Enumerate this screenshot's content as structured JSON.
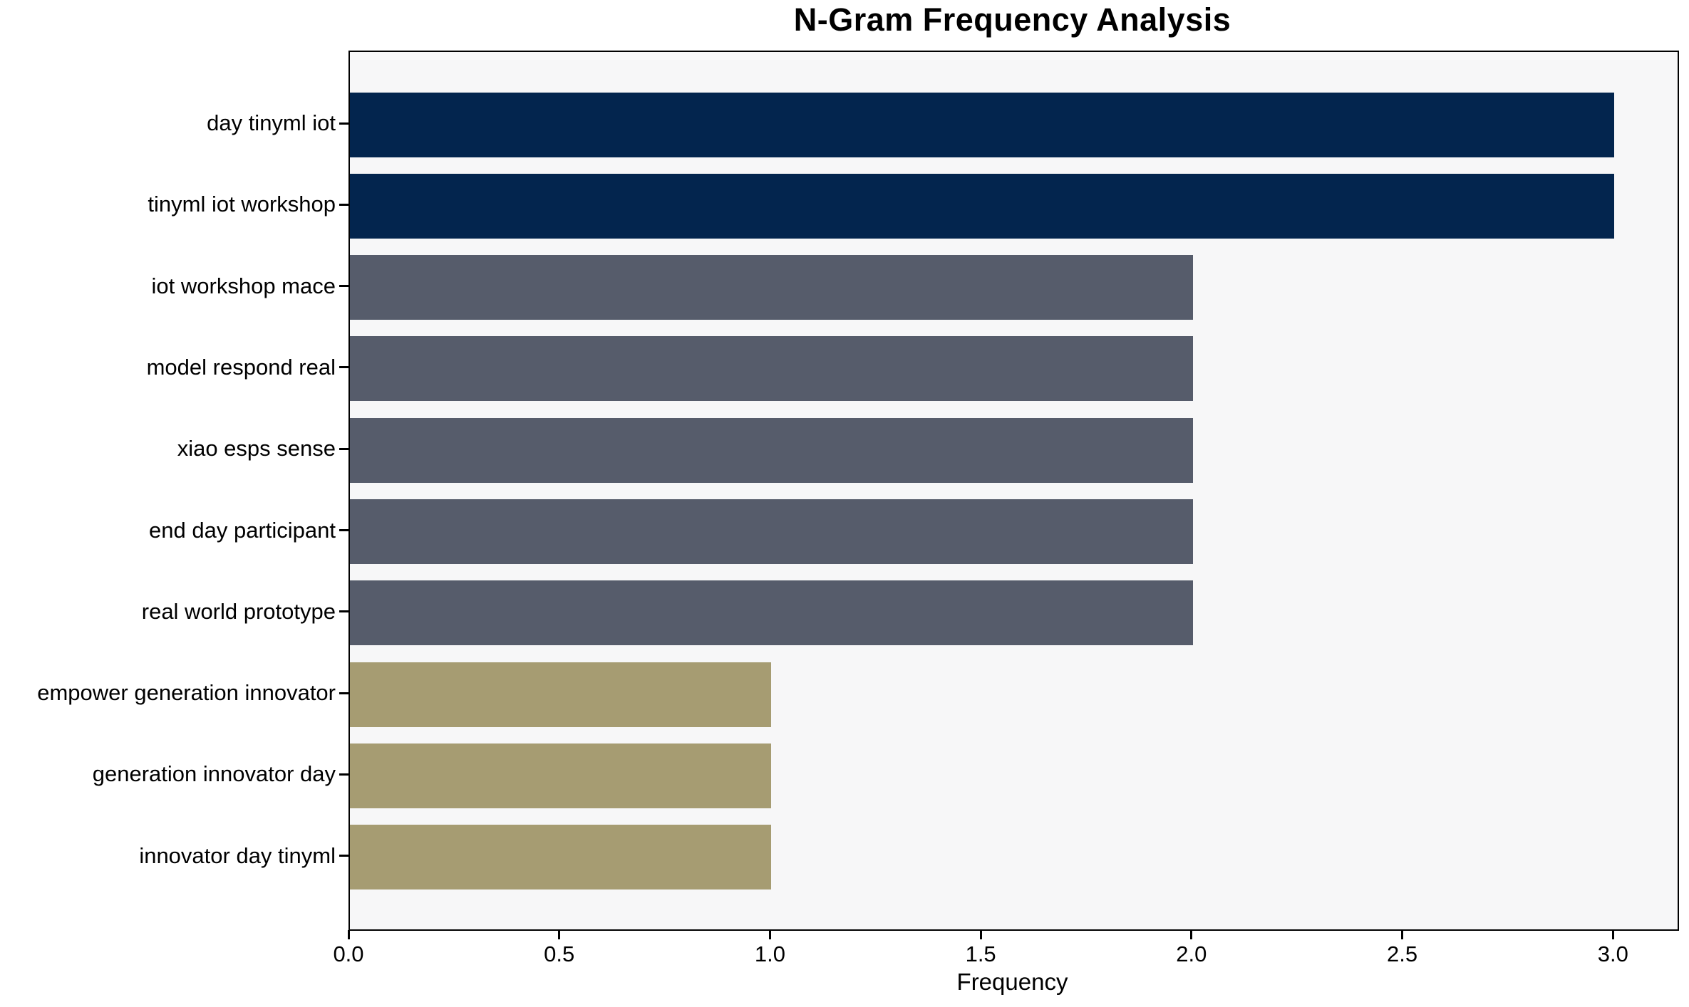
{
  "title": "N-Gram Frequency Analysis",
  "chart_data": {
    "type": "bar",
    "orientation": "horizontal",
    "title": "N-Gram Frequency Analysis",
    "xlabel": "Frequency",
    "ylabel": "",
    "categories": [
      "day tinyml iot",
      "tinyml iot workshop",
      "iot workshop mace",
      "model respond real",
      "xiao esps sense",
      "end day participant",
      "real world prototype",
      "empower generation innovator",
      "generation innovator day",
      "innovator day tinyml"
    ],
    "values": [
      3,
      3,
      2,
      2,
      2,
      2,
      2,
      1,
      1,
      1
    ],
    "bar_colors": [
      "#03254e",
      "#03254e",
      "#565c6b",
      "#565c6b",
      "#565c6b",
      "#565c6b",
      "#565c6b",
      "#a69c72",
      "#a69c72",
      "#a69c72"
    ],
    "xlim": [
      0,
      3.15
    ],
    "x_ticks": [
      "0.0",
      "0.5",
      "1.0",
      "1.5",
      "2.0",
      "2.5",
      "3.0"
    ],
    "x_tick_values": [
      0,
      0.5,
      1.0,
      1.5,
      2.0,
      2.5,
      3.0
    ],
    "grid": false,
    "legend": false,
    "plot_background": "#f7f7f8",
    "figure_background": "#ffffff",
    "axis_color": "#000000"
  }
}
